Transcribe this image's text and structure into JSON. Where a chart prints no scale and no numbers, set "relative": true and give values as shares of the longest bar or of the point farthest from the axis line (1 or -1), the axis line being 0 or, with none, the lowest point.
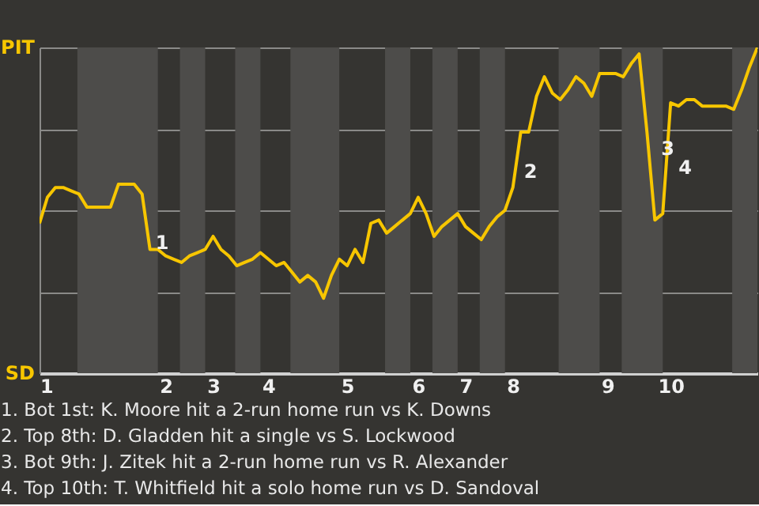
{
  "chart_data": {
    "type": "line",
    "relative": true,
    "categories": [
      "1",
      null,
      null,
      null,
      null,
      null,
      null,
      null,
      null,
      null,
      null,
      null,
      null,
      null,
      null,
      null,
      "2",
      null,
      null,
      null,
      null,
      null,
      "3",
      null,
      null,
      null,
      null,
      null,
      null,
      "4",
      null,
      null,
      null,
      null,
      null,
      null,
      null,
      null,
      null,
      "5",
      null,
      null,
      null,
      null,
      null,
      null,
      null,
      null,
      "6",
      null,
      null,
      null,
      null,
      null,
      "7",
      null,
      null,
      null,
      null,
      null,
      "8",
      null,
      null,
      null,
      null,
      null,
      null,
      null,
      null,
      null,
      null,
      null,
      "9",
      null,
      null,
      null,
      null,
      null,
      null,
      null,
      "10",
      null,
      null,
      null,
      null,
      null,
      null,
      null,
      null,
      null,
      null,
      null
    ],
    "series": [
      {
        "color": "#f7c600",
        "values": [
          0.46,
          0.54,
          0.57,
          0.57,
          0.56,
          0.55,
          0.51,
          0.51,
          0.51,
          0.51,
          0.58,
          0.58,
          0.58,
          0.55,
          0.38,
          0.38,
          0.36,
          0.35,
          0.34,
          0.36,
          0.37,
          0.38,
          0.42,
          0.38,
          0.36,
          0.33,
          0.34,
          0.35,
          0.37,
          0.35,
          0.33,
          0.34,
          0.31,
          0.28,
          0.3,
          0.28,
          0.23,
          0.3,
          0.35,
          0.33,
          0.38,
          0.34,
          0.46,
          0.47,
          0.43,
          0.45,
          0.47,
          0.49,
          0.54,
          0.49,
          0.42,
          0.45,
          0.47,
          0.49,
          0.45,
          0.43,
          0.41,
          0.45,
          0.48,
          0.5,
          0.57,
          0.74,
          0.74,
          0.85,
          0.91,
          0.86,
          0.84,
          0.87,
          0.91,
          0.89,
          0.85,
          0.92,
          0.92,
          0.92,
          0.91,
          0.95,
          0.98,
          0.74,
          0.47,
          0.49,
          0.83,
          0.82,
          0.84,
          0.84,
          0.82,
          0.82,
          0.82,
          0.82,
          0.81,
          0.87,
          0.94,
          1.0
        ]
      }
    ],
    "grid": "y",
    "annotations": [
      "PIT",
      "SD",
      "1",
      "2",
      "3",
      "4",
      "1. Bot 1st: K. Moore hit a 2-run home run vs K. Downs",
      "2. Top 8th: D. Gladden hit a single vs S. Lockwood",
      "3. Bot 9th: J. Zitek hit a 2-run home run vs R. Alexander",
      "4. Top 10th: T. Whitfield hit a solo home run vs D. Sandoval"
    ]
  }
}
